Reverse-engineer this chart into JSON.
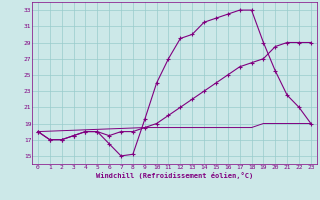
{
  "title": "",
  "xlabel": "Windchill (Refroidissement éolien,°C)",
  "ylabel": "",
  "bg_color": "#cce8e8",
  "line_color": "#800080",
  "grid_color": "#99cccc",
  "xlim": [
    -0.5,
    23.5
  ],
  "ylim": [
    14.0,
    34.0
  ],
  "xticks": [
    0,
    1,
    2,
    3,
    4,
    5,
    6,
    7,
    8,
    9,
    10,
    11,
    12,
    13,
    14,
    15,
    16,
    17,
    18,
    19,
    20,
    21,
    22,
    23
  ],
  "yticks": [
    15,
    17,
    19,
    21,
    23,
    25,
    27,
    29,
    31,
    33
  ],
  "line1_x": [
    0,
    1,
    2,
    3,
    4,
    5,
    6,
    7,
    8,
    9,
    10,
    11,
    12,
    13,
    14,
    15,
    16,
    17,
    18,
    19,
    20,
    21,
    22,
    23
  ],
  "line1_y": [
    18,
    17,
    17,
    17.5,
    18,
    18,
    16.5,
    15,
    15.2,
    19.5,
    24,
    27,
    29.5,
    30,
    31.5,
    32,
    32.5,
    33,
    33,
    29,
    25.5,
    22.5,
    21,
    19
  ],
  "line2_x": [
    0,
    1,
    2,
    3,
    4,
    5,
    6,
    7,
    8,
    9,
    10,
    11,
    12,
    13,
    14,
    15,
    16,
    17,
    18,
    19,
    20,
    21,
    22,
    23
  ],
  "line2_y": [
    18,
    17,
    17,
    17.5,
    18,
    18,
    17.5,
    18,
    18,
    18.5,
    19,
    20,
    21,
    22,
    23,
    24,
    25,
    26,
    26.5,
    27,
    28.5,
    29,
    29,
    29
  ],
  "line3_x": [
    0,
    9,
    10,
    11,
    12,
    13,
    14,
    15,
    16,
    17,
    18,
    19,
    20,
    21,
    22,
    23
  ],
  "line3_y": [
    18,
    18.5,
    18.5,
    18.5,
    18.5,
    18.5,
    18.5,
    18.5,
    18.5,
    18.5,
    18.5,
    19,
    19,
    19,
    19,
    19
  ]
}
